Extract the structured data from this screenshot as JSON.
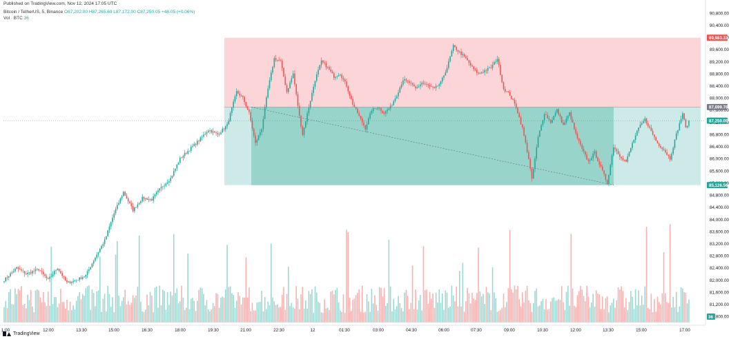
{
  "header": {
    "published": "Published on TradingView.com, Nov 12, 2024 17:05 UTC",
    "symbol": "Bitcoin / TetherUS, 5, Binance",
    "ohlc": "O87,202.00 H87,265.69 L87,172.00 C87,250.05 +48.05 (+0.06%)",
    "vol_label": "Vol · BTC",
    "vol_value": "36"
  },
  "footer": {
    "brand": "TradingView"
  },
  "colors": {
    "up": "#26a69a",
    "down": "#ef5350",
    "stop_zone": "#fcd5d8",
    "target_zone": "#b2dfdb",
    "target_zone_strong": "#8fd0c6"
  },
  "price_axis": {
    "ticks": [
      "90,800.00",
      "90,400.00",
      "90,000.00",
      "89,600.00",
      "89,200.00",
      "88,800.00",
      "88,400.00",
      "88,000.00",
      "87,600.00",
      "87,200.00",
      "86,800.00",
      "86,400.00",
      "86,000.00",
      "85,600.00",
      "85,200.00",
      "84,800.00",
      "84,400.00",
      "84,000.00",
      "83,600.00",
      "83,200.00",
      "82,800.00",
      "82,400.00",
      "82,000.00",
      "81,600.00",
      "81,200.00",
      "80,800.00"
    ],
    "badges": {
      "stop": "89,983.31",
      "entry": "87,699.76",
      "last": "87,250.05",
      "target": "85,126.56",
      "volume": "36"
    }
  },
  "time_axis": {
    "labels": [
      "1:00",
      "12:00",
      "13:30",
      "15:00",
      "16:30",
      "18:00",
      "19:30",
      "21:00",
      "22:30",
      "12",
      "01:30",
      "03:00",
      "04:30",
      "06:00",
      "07:30",
      "09:00",
      "10:30",
      "12:00",
      "13:30",
      "15:00",
      "17:00"
    ]
  },
  "chart_data": {
    "type": "candlestick",
    "title": "Bitcoin / TetherUS, 5, Binance",
    "yrange": [
      80600,
      91000
    ],
    "position_tool": {
      "stop_price": 89983.31,
      "entry_price": 87699.76,
      "target_price": 85126.56,
      "filled_low": 85126.56
    },
    "last_price": 87250.05,
    "path_keypoints": [
      {
        "t": 0,
        "p": 82000
      },
      {
        "t": 8,
        "p": 82400
      },
      {
        "t": 14,
        "p": 82200
      },
      {
        "t": 22,
        "p": 82350
      },
      {
        "t": 28,
        "p": 82000
      },
      {
        "t": 34,
        "p": 82400
      },
      {
        "t": 40,
        "p": 81900
      },
      {
        "t": 46,
        "p": 82000
      },
      {
        "t": 52,
        "p": 82150
      },
      {
        "t": 58,
        "p": 82750
      },
      {
        "t": 64,
        "p": 83300
      },
      {
        "t": 70,
        "p": 84200
      },
      {
        "t": 76,
        "p": 84900
      },
      {
        "t": 82,
        "p": 84300
      },
      {
        "t": 88,
        "p": 84700
      },
      {
        "t": 94,
        "p": 84650
      },
      {
        "t": 100,
        "p": 85050
      },
      {
        "t": 106,
        "p": 85350
      },
      {
        "t": 112,
        "p": 86000
      },
      {
        "t": 118,
        "p": 86300
      },
      {
        "t": 124,
        "p": 86600
      },
      {
        "t": 130,
        "p": 86950
      },
      {
        "t": 136,
        "p": 86800
      },
      {
        "t": 142,
        "p": 87100
      },
      {
        "t": 148,
        "p": 88200
      },
      {
        "t": 152,
        "p": 88000
      },
      {
        "t": 156,
        "p": 87500
      },
      {
        "t": 160,
        "p": 86500
      },
      {
        "t": 164,
        "p": 87000
      },
      {
        "t": 168,
        "p": 88300
      },
      {
        "t": 172,
        "p": 89300
      },
      {
        "t": 176,
        "p": 89200
      },
      {
        "t": 180,
        "p": 88200
      },
      {
        "t": 184,
        "p": 88800
      },
      {
        "t": 188,
        "p": 87400
      },
      {
        "t": 190,
        "p": 86800
      },
      {
        "t": 194,
        "p": 87700
      },
      {
        "t": 198,
        "p": 88600
      },
      {
        "t": 202,
        "p": 89200
      },
      {
        "t": 206,
        "p": 89000
      },
      {
        "t": 210,
        "p": 88700
      },
      {
        "t": 214,
        "p": 88800
      },
      {
        "t": 218,
        "p": 88400
      },
      {
        "t": 222,
        "p": 87800
      },
      {
        "t": 226,
        "p": 87400
      },
      {
        "t": 230,
        "p": 87000
      },
      {
        "t": 234,
        "p": 87600
      },
      {
        "t": 238,
        "p": 87700
      },
      {
        "t": 242,
        "p": 87500
      },
      {
        "t": 246,
        "p": 87700
      },
      {
        "t": 250,
        "p": 88100
      },
      {
        "t": 254,
        "p": 88600
      },
      {
        "t": 258,
        "p": 88500
      },
      {
        "t": 262,
        "p": 88300
      },
      {
        "t": 266,
        "p": 88500
      },
      {
        "t": 270,
        "p": 88400
      },
      {
        "t": 274,
        "p": 88300
      },
      {
        "t": 278,
        "p": 88500
      },
      {
        "t": 282,
        "p": 89000
      },
      {
        "t": 286,
        "p": 89700
      },
      {
        "t": 290,
        "p": 89500
      },
      {
        "t": 294,
        "p": 89300
      },
      {
        "t": 298,
        "p": 89000
      },
      {
        "t": 302,
        "p": 88800
      },
      {
        "t": 306,
        "p": 88900
      },
      {
        "t": 310,
        "p": 89000
      },
      {
        "t": 314,
        "p": 89300
      },
      {
        "t": 318,
        "p": 88300
      },
      {
        "t": 322,
        "p": 88100
      },
      {
        "t": 326,
        "p": 87700
      },
      {
        "t": 330,
        "p": 87000
      },
      {
        "t": 334,
        "p": 86000
      },
      {
        "t": 336,
        "p": 85300
      },
      {
        "t": 340,
        "p": 86700
      },
      {
        "t": 344,
        "p": 87500
      },
      {
        "t": 348,
        "p": 87200
      },
      {
        "t": 352,
        "p": 87600
      },
      {
        "t": 356,
        "p": 87100
      },
      {
        "t": 360,
        "p": 87500
      },
      {
        "t": 364,
        "p": 86800
      },
      {
        "t": 368,
        "p": 86300
      },
      {
        "t": 372,
        "p": 85900
      },
      {
        "t": 376,
        "p": 86200
      },
      {
        "t": 380,
        "p": 85700
      },
      {
        "t": 384,
        "p": 85200
      },
      {
        "t": 388,
        "p": 86400
      },
      {
        "t": 392,
        "p": 86100
      },
      {
        "t": 396,
        "p": 85900
      },
      {
        "t": 400,
        "p": 86500
      },
      {
        "t": 404,
        "p": 87000
      },
      {
        "t": 408,
        "p": 87300
      },
      {
        "t": 412,
        "p": 86900
      },
      {
        "t": 416,
        "p": 86500
      },
      {
        "t": 420,
        "p": 86300
      },
      {
        "t": 424,
        "p": 86000
      },
      {
        "t": 428,
        "p": 86800
      },
      {
        "t": 432,
        "p": 87500
      },
      {
        "t": 434,
        "p": 87000
      },
      {
        "t": 436,
        "p": 87250
      }
    ]
  }
}
